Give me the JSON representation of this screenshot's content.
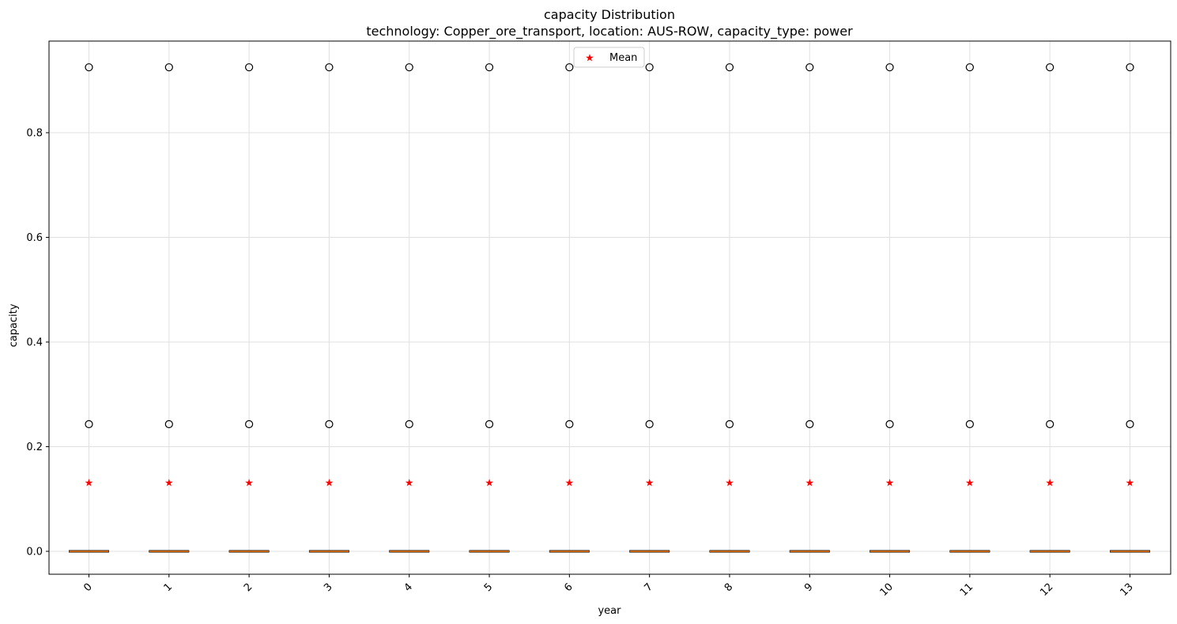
{
  "chart_data": {
    "type": "box",
    "title": "capacity Distribution",
    "subtitle": "technology: Copper_ore_transport, location: AUS-ROW, capacity_type: power",
    "xlabel": "year",
    "ylabel": "capacity",
    "categories": [
      "0",
      "1",
      "2",
      "3",
      "4",
      "5",
      "6",
      "7",
      "8",
      "9",
      "10",
      "11",
      "12",
      "13"
    ],
    "ylim": [
      -0.045,
      0.97
    ],
    "yticks": [
      0.0,
      0.2,
      0.4,
      0.6,
      0.8
    ],
    "ytick_labels": [
      "0.0",
      "0.2",
      "0.4",
      "0.6",
      "0.8"
    ],
    "grid": true,
    "box": {
      "q1": 0.0,
      "median": 0.0,
      "q3": 0.0,
      "whisker_low": 0.0,
      "whisker_high": 0.0
    },
    "outliers": [
      0.925,
      0.243
    ],
    "mean": 0.131,
    "legend": {
      "position": "top-center",
      "entries": [
        {
          "label": "Mean",
          "marker": "star"
        }
      ]
    },
    "colors": {
      "median": "#ff7f0e",
      "mean": "#ff0000",
      "outlier_edge": "#000000",
      "grid": "#e0e0e0"
    }
  }
}
